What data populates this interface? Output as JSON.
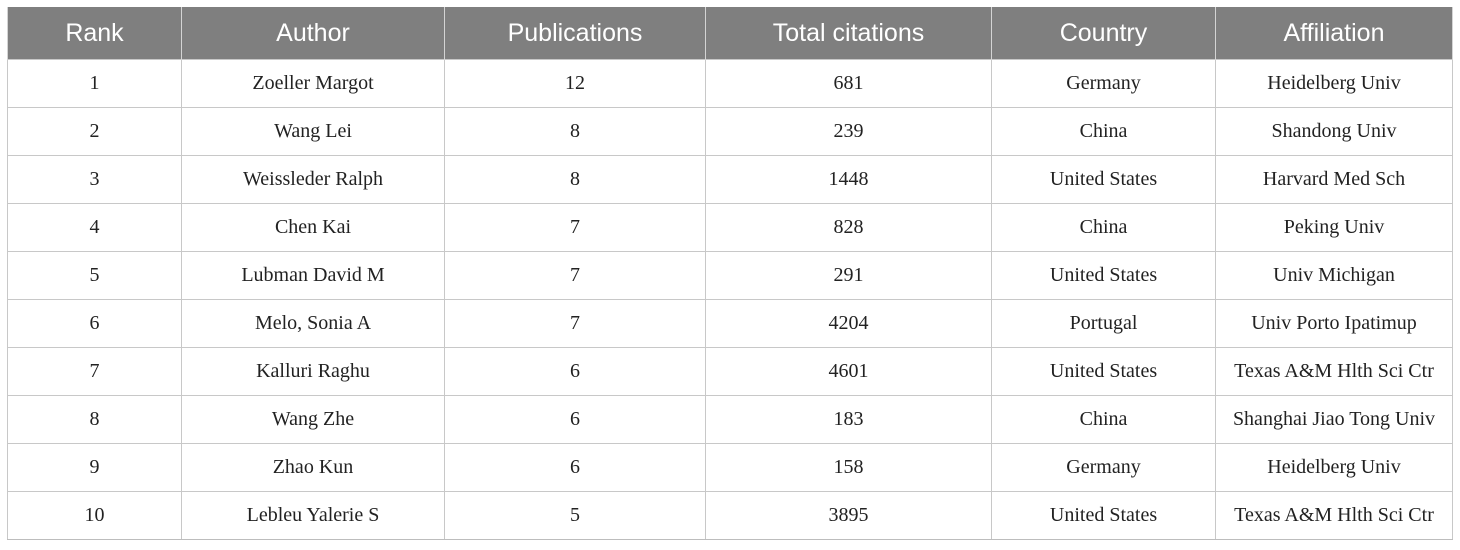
{
  "table": {
    "headers": [
      "Rank",
      "Author",
      "Publications",
      "Total citations",
      "Country",
      "Affiliation"
    ],
    "rows": [
      [
        "1",
        "Zoeller Margot",
        "12",
        "681",
        "Germany",
        "Heidelberg Univ"
      ],
      [
        "2",
        "Wang Lei",
        "8",
        "239",
        "China",
        "Shandong Univ"
      ],
      [
        "3",
        "Weissleder Ralph",
        "8",
        "1448",
        "United States",
        "Harvard Med Sch"
      ],
      [
        "4",
        "Chen Kai",
        "7",
        "828",
        "China",
        "Peking Univ"
      ],
      [
        "5",
        "Lubman David M",
        "7",
        "291",
        "United States",
        "Univ Michigan"
      ],
      [
        "6",
        "Melo, Sonia A",
        "7",
        "4204",
        "Portugal",
        "Univ Porto Ipatimup"
      ],
      [
        "7",
        "Kalluri Raghu",
        "6",
        "4601",
        "United States",
        "Texas A&M Hlth Sci Ctr"
      ],
      [
        "8",
        "Wang Zhe",
        "6",
        "183",
        "China",
        "Shanghai Jiao Tong Univ"
      ],
      [
        "9",
        "Zhao Kun",
        "6",
        "158",
        "Germany",
        "Heidelberg Univ"
      ],
      [
        "10",
        "Lebleu Yalerie S",
        "5",
        "3895",
        "United States",
        "Texas A&M Hlth Sci Ctr"
      ]
    ]
  },
  "colors": {
    "header_background": "#7f7f7f",
    "header_text": "#ffffff",
    "grid_line": "#c8c8c8"
  }
}
